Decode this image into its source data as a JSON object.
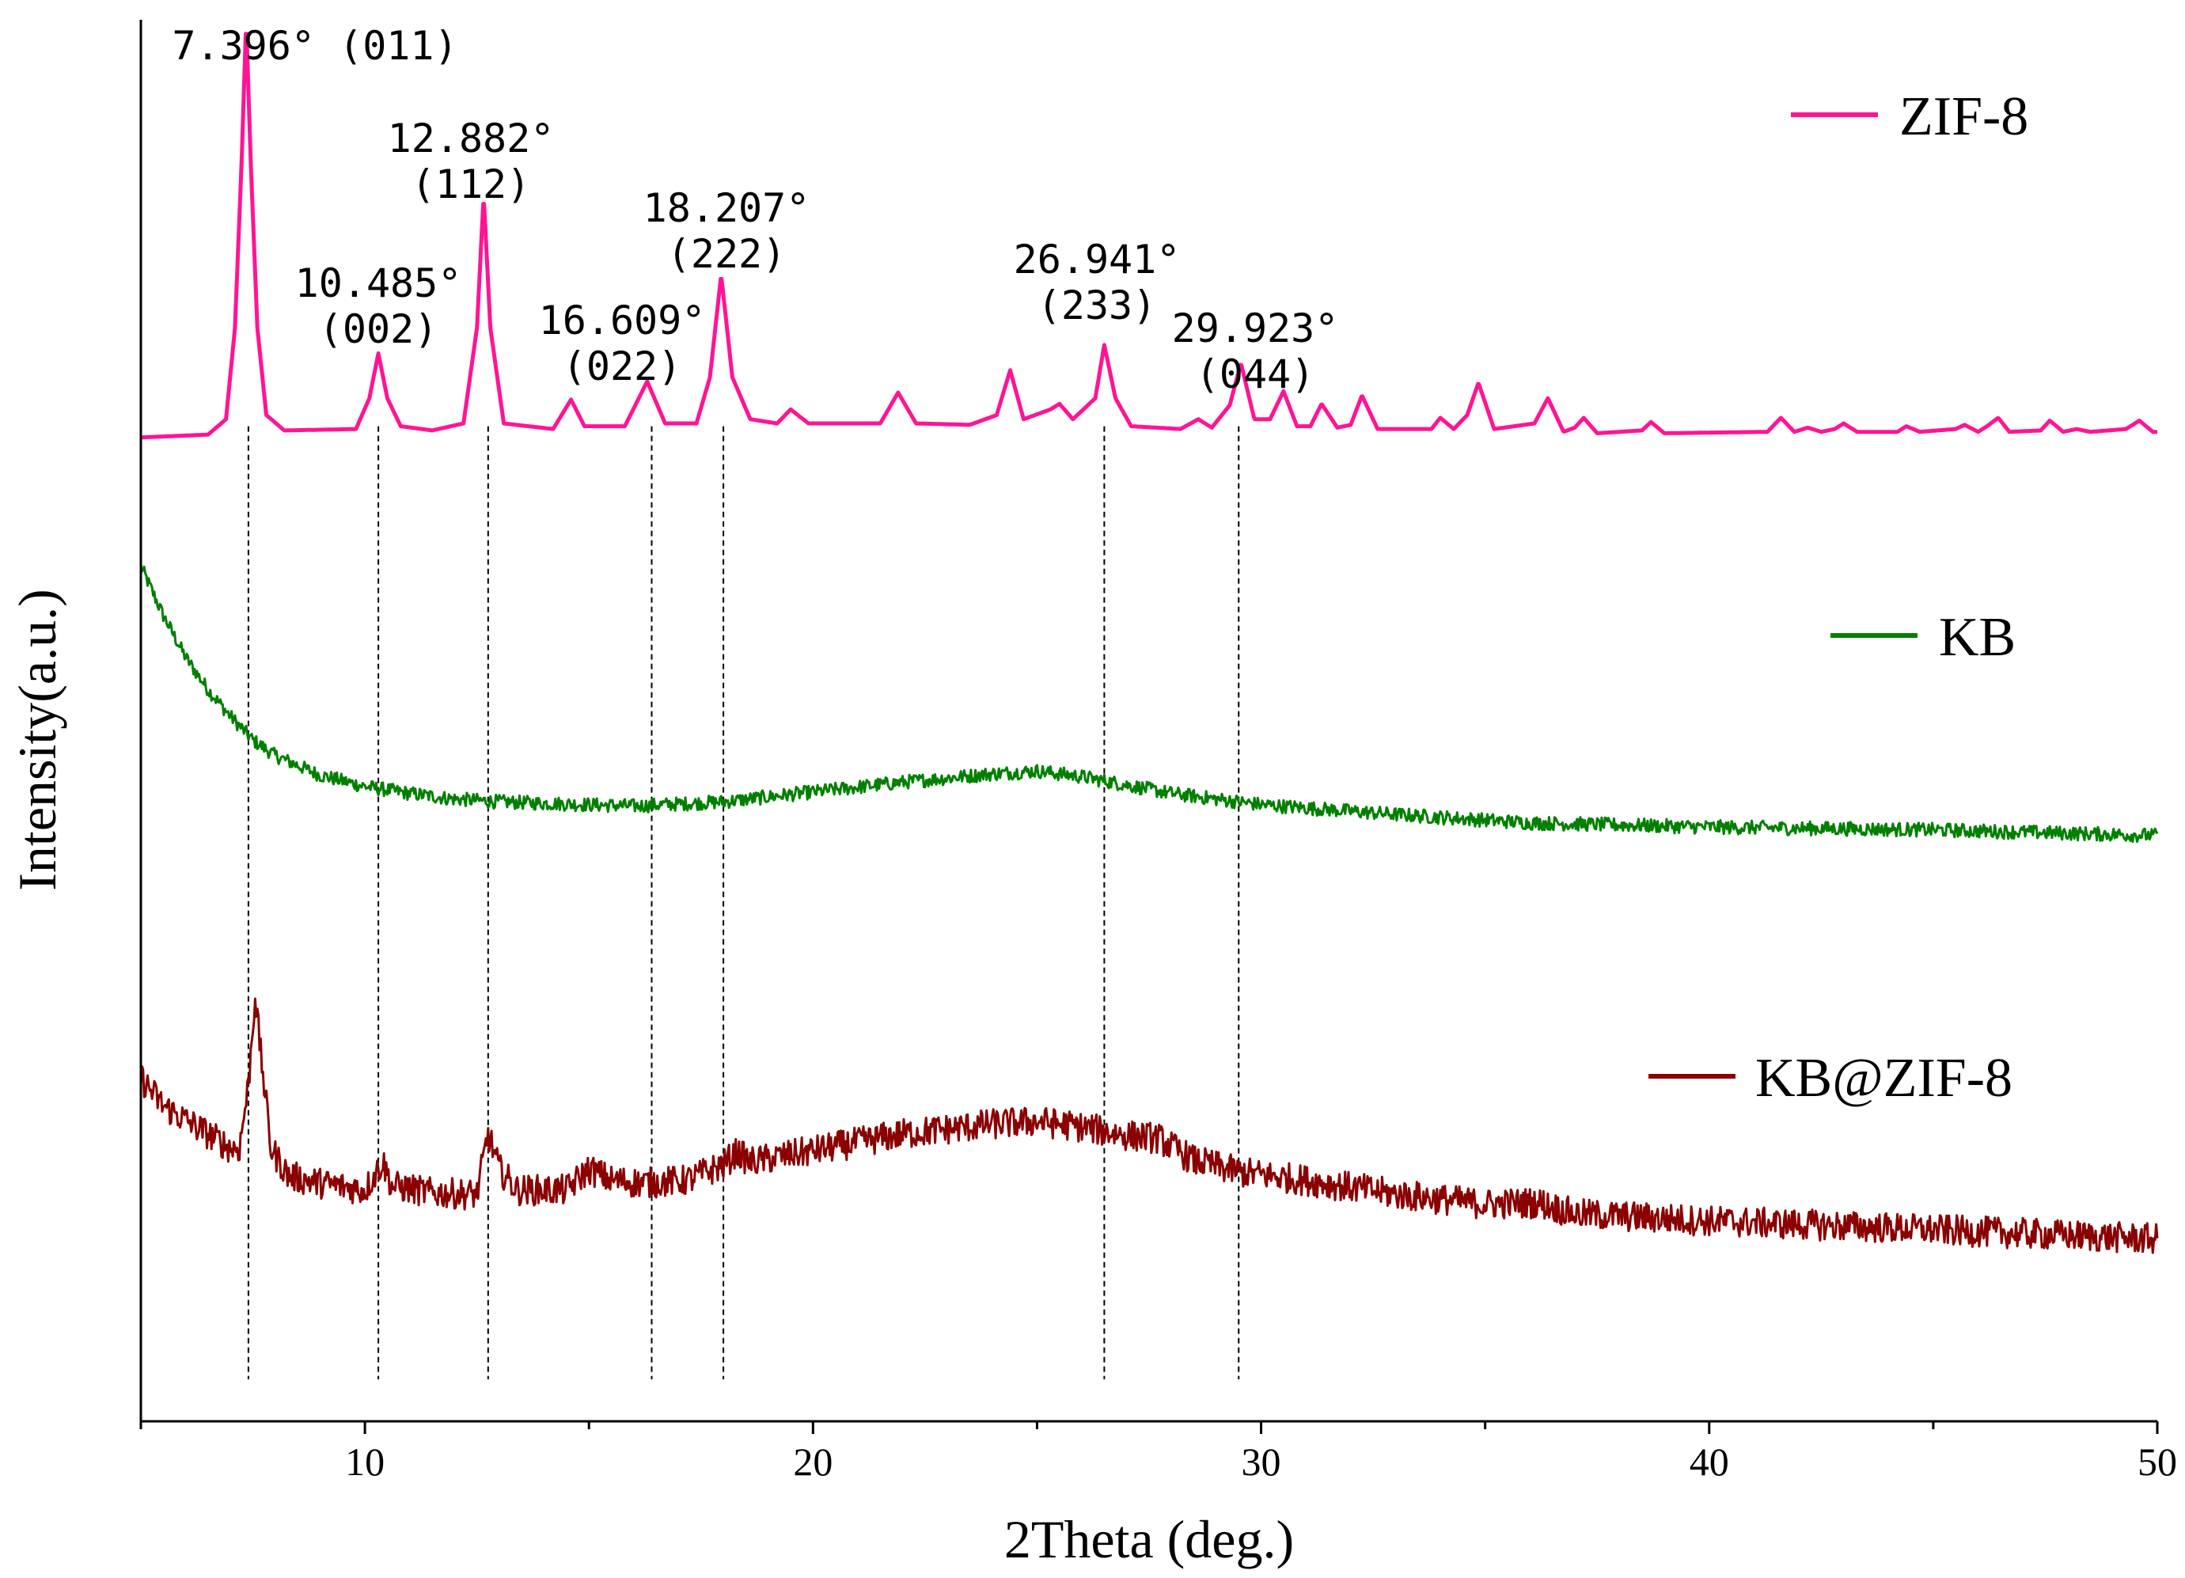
{
  "chart_data": {
    "type": "line",
    "title": "",
    "xlabel": "2Theta (deg.)",
    "ylabel": "Intensity(a.u.)",
    "xlim": [
      5,
      50
    ],
    "ylim": [
      0,
      100
    ],
    "xticks": [
      "10",
      "20",
      "30",
      "40",
      "50"
    ],
    "xtick_values": [
      10,
      20,
      30,
      40,
      50
    ],
    "yticks_shown": false,
    "legend_position": "right of each trace",
    "series": [
      {
        "name": "ZIF-8",
        "color": "#ff1493",
        "baseline": 70.5,
        "points": [
          [
            5,
            70.2
          ],
          [
            6.5,
            70.4
          ],
          [
            6.9,
            71.5
          ],
          [
            7.1,
            78
          ],
          [
            7.25,
            90
          ],
          [
            7.35,
            100
          ],
          [
            7.45,
            90
          ],
          [
            7.6,
            78
          ],
          [
            7.8,
            71.8
          ],
          [
            8.2,
            70.7
          ],
          [
            9.8,
            70.8
          ],
          [
            10.1,
            73
          ],
          [
            10.3,
            76.2
          ],
          [
            10.5,
            73
          ],
          [
            10.8,
            71
          ],
          [
            11.5,
            70.7
          ],
          [
            12.2,
            71.2
          ],
          [
            12.5,
            78
          ],
          [
            12.65,
            87.5
          ],
          [
            12.8,
            78
          ],
          [
            13.1,
            71.2
          ],
          [
            14.2,
            70.8
          ],
          [
            14.6,
            72.9
          ],
          [
            14.9,
            71
          ],
          [
            15.8,
            71
          ],
          [
            16.3,
            74.2
          ],
          [
            16.7,
            71.2
          ],
          [
            17.4,
            71.2
          ],
          [
            17.7,
            74.5
          ],
          [
            17.95,
            81.8
          ],
          [
            18.2,
            74.5
          ],
          [
            18.6,
            71.5
          ],
          [
            19.2,
            71.2
          ],
          [
            19.5,
            72.2
          ],
          [
            19.9,
            71.2
          ],
          [
            21.5,
            71.2
          ],
          [
            21.9,
            73.4
          ],
          [
            22.3,
            71.2
          ],
          [
            23.5,
            71.1
          ],
          [
            24.1,
            71.8
          ],
          [
            24.4,
            75
          ],
          [
            24.7,
            71.5
          ],
          [
            25.3,
            72.2
          ],
          [
            25.5,
            72.6
          ],
          [
            25.8,
            71.5
          ],
          [
            26.3,
            73
          ],
          [
            26.5,
            76.8
          ],
          [
            26.75,
            73
          ],
          [
            27.1,
            71
          ],
          [
            28.2,
            70.8
          ],
          [
            28.6,
            71.5
          ],
          [
            28.9,
            70.9
          ],
          [
            29.3,
            72.5
          ],
          [
            29.55,
            75.5
          ],
          [
            29.85,
            71.5
          ],
          [
            30.2,
            71.5
          ],
          [
            30.5,
            73.5
          ],
          [
            30.8,
            71
          ],
          [
            31.1,
            71
          ],
          [
            31.35,
            72.6
          ],
          [
            31.7,
            70.9
          ],
          [
            32.0,
            71.1
          ],
          [
            32.25,
            73.2
          ],
          [
            32.6,
            70.8
          ],
          [
            33.8,
            70.8
          ],
          [
            34.0,
            71.6
          ],
          [
            34.3,
            70.8
          ],
          [
            34.6,
            71.8
          ],
          [
            34.85,
            74.1
          ],
          [
            35.2,
            70.8
          ],
          [
            36.1,
            71.2
          ],
          [
            36.4,
            73
          ],
          [
            36.75,
            70.6
          ],
          [
            37.0,
            70.9
          ],
          [
            37.2,
            71.6
          ],
          [
            37.5,
            70.5
          ],
          [
            38.5,
            70.7
          ],
          [
            38.7,
            71.3
          ],
          [
            39.0,
            70.5
          ],
          [
            41.3,
            70.6
          ],
          [
            41.6,
            71.6
          ],
          [
            41.9,
            70.6
          ],
          [
            42.2,
            70.9
          ],
          [
            42.5,
            70.6
          ],
          [
            42.8,
            70.8
          ],
          [
            43.0,
            71.2
          ],
          [
            43.3,
            70.6
          ],
          [
            44.2,
            70.6
          ],
          [
            44.4,
            71
          ],
          [
            44.7,
            70.6
          ],
          [
            45.5,
            70.8
          ],
          [
            45.7,
            71.1
          ],
          [
            46.0,
            70.6
          ],
          [
            46.2,
            71
          ],
          [
            46.45,
            71.6
          ],
          [
            46.7,
            70.6
          ],
          [
            47.4,
            70.7
          ],
          [
            47.6,
            71.4
          ],
          [
            47.9,
            70.6
          ],
          [
            48.2,
            70.8
          ],
          [
            48.5,
            70.6
          ],
          [
            49.3,
            70.8
          ],
          [
            49.6,
            71.4
          ],
          [
            49.9,
            70.6
          ],
          [
            50,
            70.6
          ]
        ]
      },
      {
        "name": "KB",
        "color": "#008000",
        "noise": 0.5,
        "points": [
          [
            5,
            61
          ],
          [
            5.5,
            57.5
          ],
          [
            6,
            54.5
          ],
          [
            6.5,
            52.2
          ],
          [
            7,
            50.3
          ],
          [
            7.5,
            48.6
          ],
          [
            8,
            47.5
          ],
          [
            9,
            46.1
          ],
          [
            10,
            45.3
          ],
          [
            11,
            44.8
          ],
          [
            12,
            44.4
          ],
          [
            13,
            44.2
          ],
          [
            14,
            44.1
          ],
          [
            16,
            43.9
          ],
          [
            18,
            44.2
          ],
          [
            20,
            44.9
          ],
          [
            22,
            45.6
          ],
          [
            24,
            46.2
          ],
          [
            25,
            46.4
          ],
          [
            26,
            46.0
          ],
          [
            27,
            45.4
          ],
          [
            28,
            44.8
          ],
          [
            30,
            44.0
          ],
          [
            33,
            43.3
          ],
          [
            36,
            42.7
          ],
          [
            40,
            42.4
          ],
          [
            45,
            42.2
          ],
          [
            50,
            41.8
          ]
        ]
      },
      {
        "name": "KB@ZIF-8",
        "color": "#8b0000",
        "noise": 1.1,
        "points": [
          [
            5,
            24.5
          ],
          [
            5.5,
            22.5
          ],
          [
            6,
            21.5
          ],
          [
            6.5,
            20.5
          ],
          [
            7,
            19.5
          ],
          [
            7.2,
            19.5
          ],
          [
            7.4,
            24
          ],
          [
            7.55,
            30.5
          ],
          [
            7.65,
            27
          ],
          [
            7.9,
            19.5
          ],
          [
            8.3,
            17.5
          ],
          [
            9,
            17
          ],
          [
            10,
            16.5
          ],
          [
            10.4,
            18.5
          ],
          [
            10.6,
            16.8
          ],
          [
            11.5,
            16.3
          ],
          [
            12.5,
            16.2
          ],
          [
            12.75,
            20.5
          ],
          [
            13.0,
            18
          ],
          [
            13.4,
            16.5
          ],
          [
            14.5,
            16.5
          ],
          [
            15,
            18
          ],
          [
            15.5,
            17.2
          ],
          [
            16.2,
            17
          ],
          [
            17.2,
            17.2
          ],
          [
            18.0,
            18.3
          ],
          [
            18.3,
            19.2
          ],
          [
            18.6,
            18.5
          ],
          [
            20,
            19.3
          ],
          [
            22,
            20.5
          ],
          [
            24,
            21.2
          ],
          [
            25,
            21.4
          ],
          [
            26,
            21.0
          ],
          [
            27,
            20.4
          ],
          [
            27.7,
            20.2
          ],
          [
            28.5,
            18.6
          ],
          [
            29.5,
            17.8
          ],
          [
            31,
            17.2
          ],
          [
            33,
            16.2
          ],
          [
            35,
            15.5
          ],
          [
            36.2,
            15.6
          ],
          [
            37,
            14.8
          ],
          [
            40,
            14.3
          ],
          [
            44,
            13.8
          ],
          [
            47,
            13.4
          ],
          [
            50,
            13.0
          ]
        ]
      }
    ],
    "reference_lines": [
      7.4,
      10.3,
      12.75,
      16.4,
      18.0,
      26.5,
      29.5
    ],
    "annotations": [
      {
        "lines": [
          "7.396° (011)"
        ],
        "x": 7.396
      },
      {
        "lines": [
          "10.485°",
          "(002)"
        ],
        "x": 10.485
      },
      {
        "lines": [
          "12.882°",
          "(112)"
        ],
        "x": 12.882
      },
      {
        "lines": [
          "16.609°",
          "(022)"
        ],
        "x": 16.609
      },
      {
        "lines": [
          "18.207°",
          "(222)"
        ],
        "x": 18.207
      },
      {
        "lines": [
          "26.941°",
          "(233)"
        ],
        "x": 26.941
      },
      {
        "lines": [
          "29.923°",
          "(044)"
        ],
        "x": 29.923
      }
    ]
  }
}
